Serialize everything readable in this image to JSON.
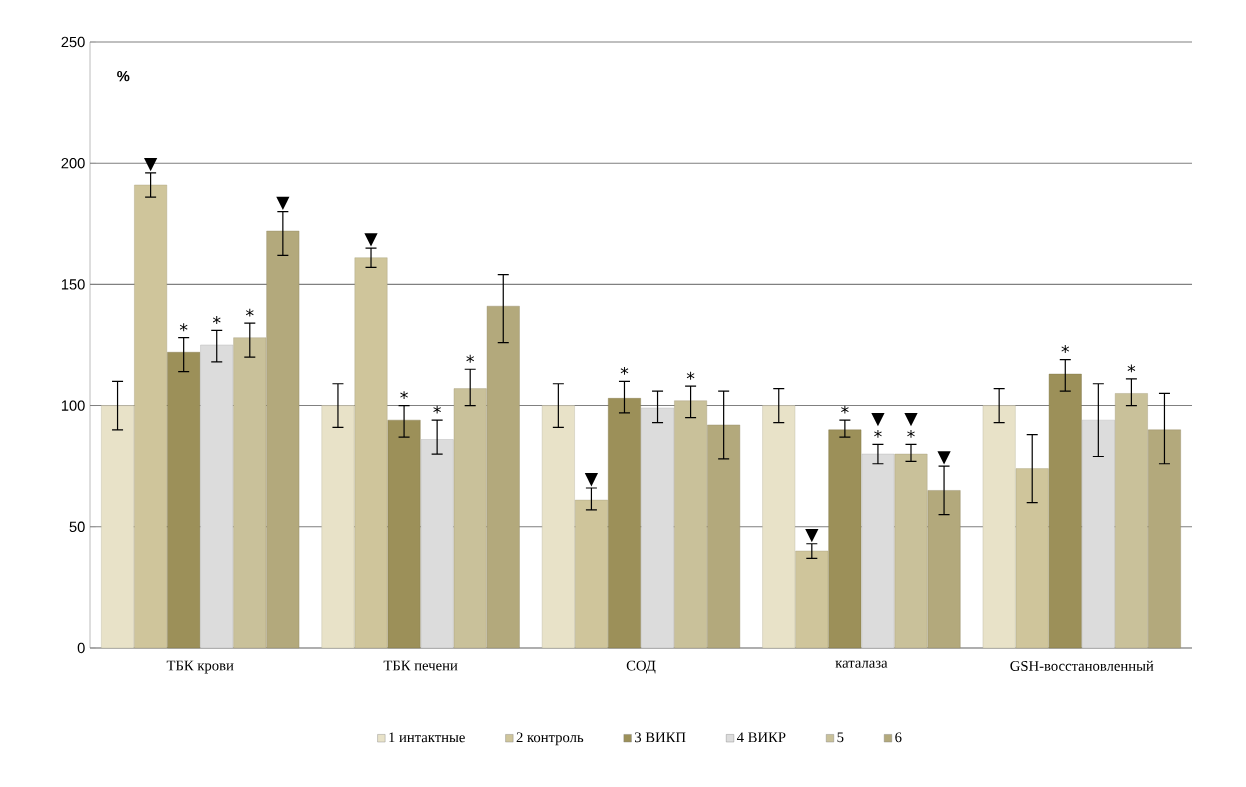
{
  "chart_data": {
    "type": "bar",
    "ylabel": "%",
    "categories": [
      "ТБК крови",
      "ТБК печени",
      "СОД",
      "каталаза",
      "GSH-восстановленный"
    ],
    "ylim": [
      0,
      250
    ],
    "yticks": [
      0,
      50,
      100,
      150,
      200,
      250
    ],
    "grid": "y",
    "legend": "bottom",
    "series": [
      {
        "name": "1 интактные",
        "color": "#e8e2c8",
        "values": [
          100,
          100,
          100,
          100,
          100
        ],
        "errors": [
          [
            90,
            110
          ],
          [
            91,
            109
          ],
          [
            91,
            109
          ],
          [
            93,
            107
          ],
          [
            93,
            107
          ]
        ],
        "value_labels": [
          null,
          null,
          null,
          null,
          null
        ]
      },
      {
        "name": "2 контроль",
        "color": "#cfc59b",
        "values": [
          191,
          161,
          61,
          40,
          74
        ],
        "errors": [
          [
            186,
            196
          ],
          [
            157,
            165
          ],
          [
            57,
            66
          ],
          [
            37,
            43
          ],
          [
            60,
            88
          ]
        ],
        "value_labels": [
          "▼",
          "▼",
          "▼",
          "▼",
          null
        ]
      },
      {
        "name": "3 ВИКП",
        "color": "#9c9059",
        "values": [
          122,
          94,
          103,
          90,
          113
        ],
        "errors": [
          [
            114,
            128
          ],
          [
            87,
            100
          ],
          [
            97,
            110
          ],
          [
            87,
            94
          ],
          [
            106,
            119
          ]
        ],
        "value_labels": [
          "*",
          "*",
          "*",
          "*",
          "*"
        ]
      },
      {
        "name": "4 ВИКР",
        "color": "#dcdcdc",
        "values": [
          125,
          86,
          99,
          80,
          94
        ],
        "errors": [
          [
            118,
            131
          ],
          [
            80,
            94
          ],
          [
            93,
            106
          ],
          [
            76,
            84
          ],
          [
            79,
            109
          ]
        ],
        "value_labels": [
          "*",
          "*",
          null,
          "▼ *",
          null
        ]
      },
      {
        "name": "5",
        "color": "#c9c19a",
        "values": [
          128,
          107,
          102,
          80,
          105
        ],
        "errors": [
          [
            120,
            134
          ],
          [
            100,
            115
          ],
          [
            95,
            108
          ],
          [
            77,
            84
          ],
          [
            100,
            111
          ]
        ],
        "value_labels": [
          "*",
          "*",
          "*",
          "▼ *",
          "*"
        ]
      },
      {
        "name": "6",
        "color": "#b3a97c",
        "values": [
          172,
          141,
          92,
          65,
          90
        ],
        "errors": [
          [
            162,
            180
          ],
          [
            126,
            154
          ],
          [
            78,
            106
          ],
          [
            55,
            75
          ],
          [
            76,
            105
          ]
        ],
        "value_labels": [
          "▼",
          null,
          null,
          "▼",
          null
        ]
      }
    ]
  }
}
